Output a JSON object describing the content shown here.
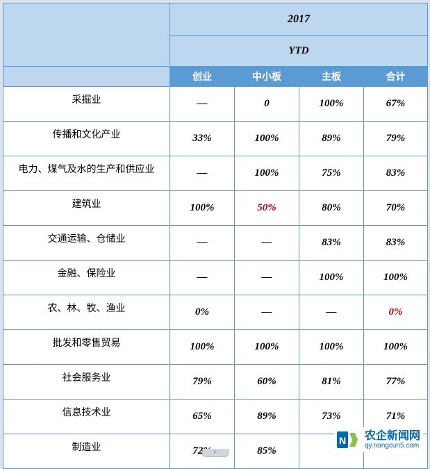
{
  "header": {
    "year": "2017",
    "period": "YTD",
    "columns": [
      "创业",
      "中小板",
      "主板",
      "合计"
    ]
  },
  "rows": [
    {
      "label": "采掘业",
      "c1": "—",
      "c2": "0",
      "c3": "100%",
      "c4": "67%",
      "h": []
    },
    {
      "label": "传播和文化产业",
      "c1": "33%",
      "c2": "100%",
      "c3": "89%",
      "c4": "79%",
      "h": []
    },
    {
      "label": "电力、煤气及水的生产和供应业",
      "c1": "—",
      "c2": "100%",
      "c3": "75%",
      "c4": "83%",
      "h": []
    },
    {
      "label": "建筑业",
      "c1": "100%",
      "c2": "50%",
      "c3": "80%",
      "c4": "70%",
      "h": [
        "c2"
      ]
    },
    {
      "label": "交通运输、仓储业",
      "c1": "—",
      "c2": "—",
      "c3": "83%",
      "c4": "83%",
      "h": []
    },
    {
      "label": "金融、保险业",
      "c1": "—",
      "c2": "—",
      "c3": "100%",
      "c4": "100%",
      "h": []
    },
    {
      "label": "农、林、牧、渔业",
      "c1": "0%",
      "c2": "—",
      "c3": "—",
      "c4": "0%",
      "h": [
        "c4"
      ]
    },
    {
      "label": "批发和零售贸易",
      "c1": "100%",
      "c2": "100%",
      "c3": "100%",
      "c4": "100%",
      "h": []
    },
    {
      "label": "社会服务业",
      "c1": "79%",
      "c2": "60%",
      "c3": "81%",
      "c4": "77%",
      "h": []
    },
    {
      "label": "信息技术业",
      "c1": "65%",
      "c2": "89%",
      "c3": "73%",
      "c4": "71%",
      "h": []
    },
    {
      "label": "制造业",
      "c1": "72%",
      "c2": "85%",
      "c3": "",
      "c4": "",
      "h": []
    }
  ],
  "watermark": {
    "cn": "农企新闻网",
    "url": "qy.nongcun5.com"
  },
  "colors": {
    "header_bg": "#bdd7ee",
    "subheader_bg": "#5b9bd5",
    "border": "#5b9bd5",
    "highlight": "#c00000",
    "brand": "#0068b7"
  },
  "add_tab": "+"
}
